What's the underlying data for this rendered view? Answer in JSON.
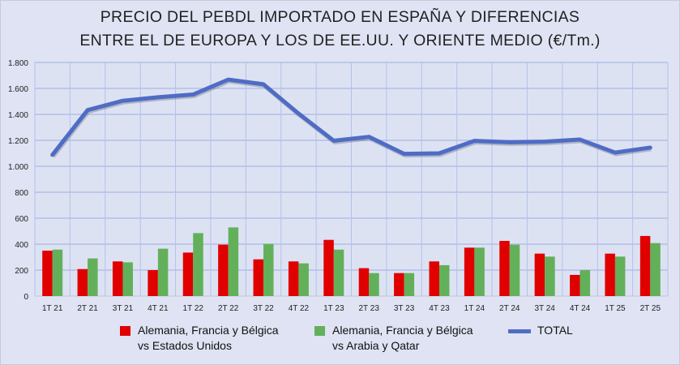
{
  "chart_data": {
    "type": "bar",
    "title": [
      "PRECIO DEL PEBDL IMPORTADO EN ESPAÑA Y DIFERENCIAS",
      "ENTRE EL DE EUROPA Y LOS DE EE.UU. Y ORIENTE MEDIO (€/Tm.)"
    ],
    "categories": [
      "1T 21",
      "2T 21",
      "3T 21",
      "4T 21",
      "1T 22",
      "2T 22",
      "3T 22",
      "4T 22",
      "1T 23",
      "2T 23",
      "3T 23",
      "4T 23",
      "1T 24",
      "2T 24",
      "3T 24",
      "4T 24",
      "1T 25",
      "2T 25"
    ],
    "ylim": [
      0,
      1800
    ],
    "yticks": [
      0,
      200,
      400,
      600,
      800,
      1000,
      1200,
      1400,
      1600,
      1800
    ],
    "ytick_labels": [
      "0",
      "200",
      "400",
      "600",
      "800",
      "1.000",
      "1.200",
      "1.400",
      "1.600",
      "1.800"
    ],
    "grid": true,
    "legend_position": "bottom",
    "series": [
      {
        "name": "Alemania, Francia y Bélgica vs Estados Unidos",
        "name_lines": [
          "Alemania, Francia y Bélgica",
          "vs Estados Unidos"
        ],
        "type": "bar",
        "color": "#e00000",
        "values": [
          350,
          208,
          267,
          200,
          335,
          396,
          283,
          267,
          433,
          215,
          177,
          267,
          373,
          425,
          327,
          163,
          327,
          463
        ]
      },
      {
        "name": "Alemania, Francia y Bélgica vs Arabia y Qatar",
        "name_lines": [
          "Alemania, Francia y Bélgica",
          "vs Arabia y Qatar"
        ],
        "type": "bar",
        "color": "#63b05a",
        "values": [
          358,
          290,
          260,
          365,
          485,
          529,
          402,
          252,
          358,
          177,
          177,
          238,
          373,
          396,
          304,
          200,
          304,
          408
        ]
      },
      {
        "name": "TOTAL",
        "name_lines": [
          "TOTAL"
        ],
        "type": "line",
        "color": "#4f6cc5",
        "values": [
          1088,
          1433,
          1505,
          1532,
          1553,
          1668,
          1632,
          1406,
          1197,
          1227,
          1096,
          1100,
          1196,
          1185,
          1190,
          1206,
          1106,
          1144
        ]
      }
    ]
  }
}
